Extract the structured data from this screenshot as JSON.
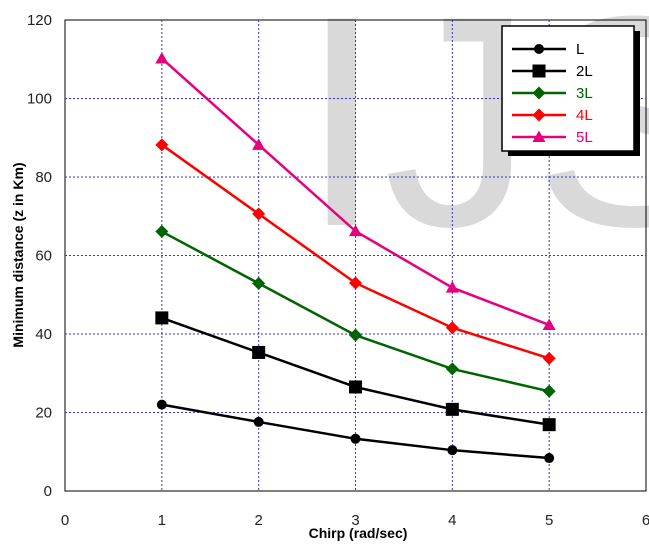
{
  "chart_data": {
    "type": "line",
    "title": "",
    "xlabel": "Chirp (rad/sec)",
    "ylabel": "Minimum distance (z in Km)",
    "xlim": [
      0,
      6
    ],
    "ylim": [
      0,
      120
    ],
    "xticks": [
      0,
      1,
      2,
      3,
      4,
      5,
      6
    ],
    "yticks": [
      0,
      20,
      40,
      60,
      80,
      100,
      120
    ],
    "grid": true,
    "legend_position": "top-right",
    "watermark": "IJS",
    "x": [
      1,
      2,
      3,
      4,
      5
    ],
    "series": [
      {
        "name": "L",
        "color": "#000000",
        "marker": "circle",
        "values": [
          22,
          17.6,
          13.3,
          10.4,
          8.4
        ]
      },
      {
        "name": "2L",
        "color": "#000000",
        "marker": "square",
        "values": [
          44.1,
          35.3,
          26.5,
          20.8,
          16.9
        ]
      },
      {
        "name": "3L",
        "color": "#006400",
        "marker": "diamond",
        "values": [
          66.1,
          52.9,
          39.7,
          31.1,
          25.4
        ]
      },
      {
        "name": "4L",
        "color": "#ff0000",
        "marker": "diamond",
        "values": [
          88.2,
          70.6,
          53,
          41.6,
          33.8
        ]
      },
      {
        "name": "5L",
        "color": "#e6007e",
        "marker": "triangle",
        "values": [
          110.2,
          88.2,
          66.2,
          51.8,
          42.3
        ]
      }
    ]
  }
}
